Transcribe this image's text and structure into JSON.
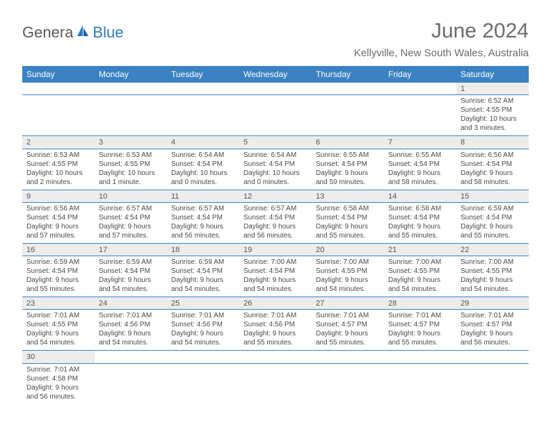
{
  "brand": {
    "part1": "Genera",
    "part2": "Blue"
  },
  "title": {
    "month": "June 2024",
    "location": "Kellyville, New South Wales, Australia"
  },
  "colors": {
    "header_bg": "#3a82c4",
    "header_text": "#ffffff",
    "daynum_bg": "#ececec",
    "rule": "#3a82c4",
    "body_text": "#4a4a4a",
    "title_text": "#6b6b6b",
    "brand_blue": "#2f78c2",
    "brand_gray": "#5a5a5a",
    "page_bg": "#ffffff"
  },
  "typography": {
    "month_fontsize": 30,
    "location_fontsize": 15,
    "header_fontsize": 12,
    "daynum_fontsize": 11,
    "detail_fontsize": 10
  },
  "daysOfWeek": [
    "Sunday",
    "Monday",
    "Tuesday",
    "Wednesday",
    "Thursday",
    "Friday",
    "Saturday"
  ],
  "weeks": [
    [
      null,
      null,
      null,
      null,
      null,
      null,
      {
        "n": "1",
        "sr": "Sunrise: 6:52 AM",
        "ss": "Sunset: 4:55 PM",
        "d1": "Daylight: 10 hours",
        "d2": "and 3 minutes."
      }
    ],
    [
      {
        "n": "2",
        "sr": "Sunrise: 6:53 AM",
        "ss": "Sunset: 4:55 PM",
        "d1": "Daylight: 10 hours",
        "d2": "and 2 minutes."
      },
      {
        "n": "3",
        "sr": "Sunrise: 6:53 AM",
        "ss": "Sunset: 4:55 PM",
        "d1": "Daylight: 10 hours",
        "d2": "and 1 minute."
      },
      {
        "n": "4",
        "sr": "Sunrise: 6:54 AM",
        "ss": "Sunset: 4:54 PM",
        "d1": "Daylight: 10 hours",
        "d2": "and 0 minutes."
      },
      {
        "n": "5",
        "sr": "Sunrise: 6:54 AM",
        "ss": "Sunset: 4:54 PM",
        "d1": "Daylight: 10 hours",
        "d2": "and 0 minutes."
      },
      {
        "n": "6",
        "sr": "Sunrise: 6:55 AM",
        "ss": "Sunset: 4:54 PM",
        "d1": "Daylight: 9 hours",
        "d2": "and 59 minutes."
      },
      {
        "n": "7",
        "sr": "Sunrise: 6:55 AM",
        "ss": "Sunset: 4:54 PM",
        "d1": "Daylight: 9 hours",
        "d2": "and 58 minutes."
      },
      {
        "n": "8",
        "sr": "Sunrise: 6:56 AM",
        "ss": "Sunset: 4:54 PM",
        "d1": "Daylight: 9 hours",
        "d2": "and 58 minutes."
      }
    ],
    [
      {
        "n": "9",
        "sr": "Sunrise: 6:56 AM",
        "ss": "Sunset: 4:54 PM",
        "d1": "Daylight: 9 hours",
        "d2": "and 57 minutes."
      },
      {
        "n": "10",
        "sr": "Sunrise: 6:57 AM",
        "ss": "Sunset: 4:54 PM",
        "d1": "Daylight: 9 hours",
        "d2": "and 57 minutes."
      },
      {
        "n": "11",
        "sr": "Sunrise: 6:57 AM",
        "ss": "Sunset: 4:54 PM",
        "d1": "Daylight: 9 hours",
        "d2": "and 56 minutes."
      },
      {
        "n": "12",
        "sr": "Sunrise: 6:57 AM",
        "ss": "Sunset: 4:54 PM",
        "d1": "Daylight: 9 hours",
        "d2": "and 56 minutes."
      },
      {
        "n": "13",
        "sr": "Sunrise: 6:58 AM",
        "ss": "Sunset: 4:54 PM",
        "d1": "Daylight: 9 hours",
        "d2": "and 55 minutes."
      },
      {
        "n": "14",
        "sr": "Sunrise: 6:58 AM",
        "ss": "Sunset: 4:54 PM",
        "d1": "Daylight: 9 hours",
        "d2": "and 55 minutes."
      },
      {
        "n": "15",
        "sr": "Sunrise: 6:59 AM",
        "ss": "Sunset: 4:54 PM",
        "d1": "Daylight: 9 hours",
        "d2": "and 55 minutes."
      }
    ],
    [
      {
        "n": "16",
        "sr": "Sunrise: 6:59 AM",
        "ss": "Sunset: 4:54 PM",
        "d1": "Daylight: 9 hours",
        "d2": "and 55 minutes."
      },
      {
        "n": "17",
        "sr": "Sunrise: 6:59 AM",
        "ss": "Sunset: 4:54 PM",
        "d1": "Daylight: 9 hours",
        "d2": "and 54 minutes."
      },
      {
        "n": "18",
        "sr": "Sunrise: 6:59 AM",
        "ss": "Sunset: 4:54 PM",
        "d1": "Daylight: 9 hours",
        "d2": "and 54 minutes."
      },
      {
        "n": "19",
        "sr": "Sunrise: 7:00 AM",
        "ss": "Sunset: 4:54 PM",
        "d1": "Daylight: 9 hours",
        "d2": "and 54 minutes."
      },
      {
        "n": "20",
        "sr": "Sunrise: 7:00 AM",
        "ss": "Sunset: 4:55 PM",
        "d1": "Daylight: 9 hours",
        "d2": "and 54 minutes."
      },
      {
        "n": "21",
        "sr": "Sunrise: 7:00 AM",
        "ss": "Sunset: 4:55 PM",
        "d1": "Daylight: 9 hours",
        "d2": "and 54 minutes."
      },
      {
        "n": "22",
        "sr": "Sunrise: 7:00 AM",
        "ss": "Sunset: 4:55 PM",
        "d1": "Daylight: 9 hours",
        "d2": "and 54 minutes."
      }
    ],
    [
      {
        "n": "23",
        "sr": "Sunrise: 7:01 AM",
        "ss": "Sunset: 4:55 PM",
        "d1": "Daylight: 9 hours",
        "d2": "and 54 minutes."
      },
      {
        "n": "24",
        "sr": "Sunrise: 7:01 AM",
        "ss": "Sunset: 4:56 PM",
        "d1": "Daylight: 9 hours",
        "d2": "and 54 minutes."
      },
      {
        "n": "25",
        "sr": "Sunrise: 7:01 AM",
        "ss": "Sunset: 4:56 PM",
        "d1": "Daylight: 9 hours",
        "d2": "and 54 minutes."
      },
      {
        "n": "26",
        "sr": "Sunrise: 7:01 AM",
        "ss": "Sunset: 4:56 PM",
        "d1": "Daylight: 9 hours",
        "d2": "and 55 minutes."
      },
      {
        "n": "27",
        "sr": "Sunrise: 7:01 AM",
        "ss": "Sunset: 4:57 PM",
        "d1": "Daylight: 9 hours",
        "d2": "and 55 minutes."
      },
      {
        "n": "28",
        "sr": "Sunrise: 7:01 AM",
        "ss": "Sunset: 4:57 PM",
        "d1": "Daylight: 9 hours",
        "d2": "and 55 minutes."
      },
      {
        "n": "29",
        "sr": "Sunrise: 7:01 AM",
        "ss": "Sunset: 4:57 PM",
        "d1": "Daylight: 9 hours",
        "d2": "and 56 minutes."
      }
    ],
    [
      {
        "n": "30",
        "sr": "Sunrise: 7:01 AM",
        "ss": "Sunset: 4:58 PM",
        "d1": "Daylight: 9 hours",
        "d2": "and 56 minutes."
      },
      null,
      null,
      null,
      null,
      null,
      null
    ]
  ]
}
